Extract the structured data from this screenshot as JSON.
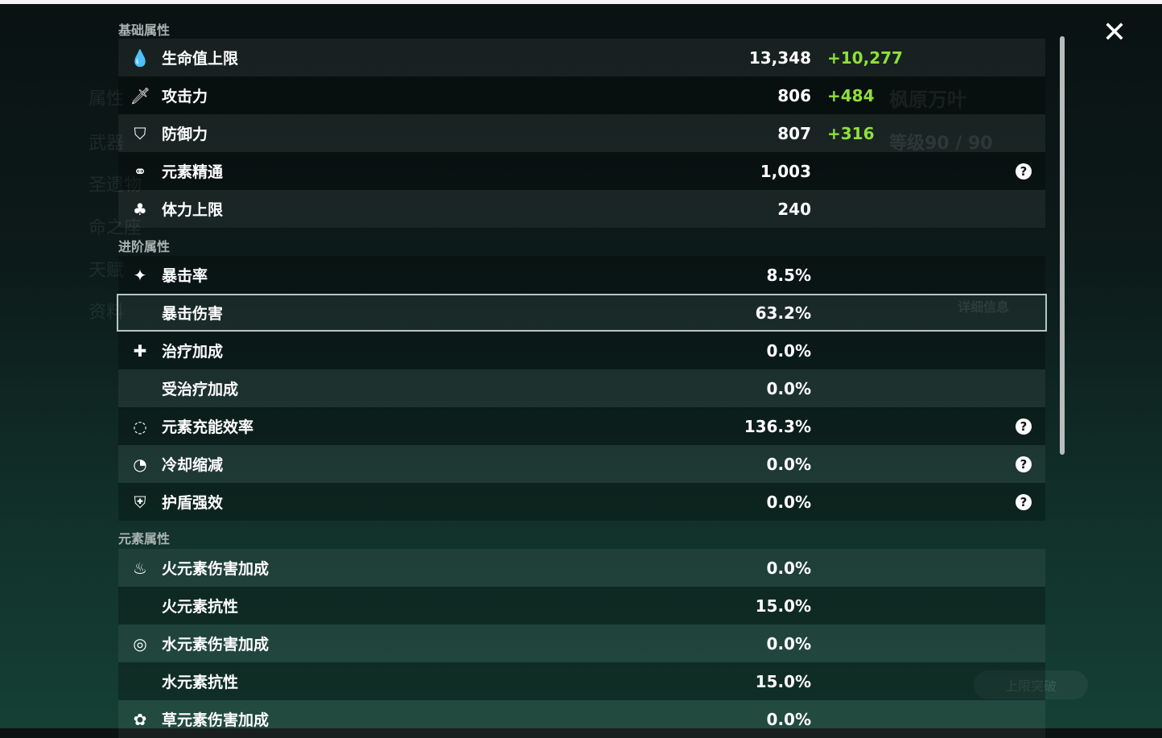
{
  "background": {
    "character_name": "枫原万叶",
    "level": "等级90 / 90",
    "details_button": "详细信息",
    "ascend_button": "上限突破",
    "side_menu": [
      "属性",
      "武器",
      "圣遗物",
      "命之座",
      "天赋",
      "资料"
    ]
  },
  "close_icon": "close-icon",
  "sections": [
    {
      "title": "基础属性",
      "rows": [
        {
          "icon": "hp-drop-icon",
          "glyph": "💧",
          "label": "生命值上限",
          "value": "13,348",
          "bonus": "+10,277",
          "help": false
        },
        {
          "icon": "sword-icon",
          "glyph": "🗡",
          "label": "攻击力",
          "value": "806",
          "bonus": "+484",
          "help": false
        },
        {
          "icon": "shield-icon",
          "glyph": "⛉",
          "label": "防御力",
          "value": "807",
          "bonus": "+316",
          "help": false
        },
        {
          "icon": "elemental-mastery-icon",
          "glyph": "⚭",
          "label": "元素精通",
          "value": "1,003",
          "bonus": "",
          "help": true
        },
        {
          "icon": "stamina-icon",
          "glyph": "♣",
          "label": "体力上限",
          "value": "240",
          "bonus": "",
          "help": false
        }
      ]
    },
    {
      "title": "进阶属性",
      "rows": [
        {
          "icon": "crit-rate-icon",
          "glyph": "✦",
          "label": "暴击率",
          "value": "8.5%",
          "bonus": "",
          "help": false
        },
        {
          "icon": "crit-dmg-icon",
          "glyph": "",
          "label": "暴击伤害",
          "value": "63.2%",
          "bonus": "",
          "help": false,
          "selected": true
        },
        {
          "icon": "healing-icon",
          "glyph": "✚",
          "label": "治疗加成",
          "value": "0.0%",
          "bonus": "",
          "help": false
        },
        {
          "icon": "",
          "glyph": "",
          "label": "受治疗加成",
          "value": "0.0%",
          "bonus": "",
          "help": false
        },
        {
          "icon": "energy-recharge-icon",
          "glyph": "◌",
          "label": "元素充能效率",
          "value": "136.3%",
          "bonus": "",
          "help": true
        },
        {
          "icon": "cooldown-icon",
          "glyph": "◔",
          "label": "冷却缩减",
          "value": "0.0%",
          "bonus": "",
          "help": true
        },
        {
          "icon": "shield-strength-icon",
          "glyph": "⛨",
          "label": "护盾强效",
          "value": "0.0%",
          "bonus": "",
          "help": true
        }
      ]
    },
    {
      "title": "元素属性",
      "rows": [
        {
          "icon": "pyro-icon",
          "glyph": "♨",
          "label": "火元素伤害加成",
          "value": "0.0%",
          "bonus": "",
          "help": false
        },
        {
          "icon": "",
          "glyph": "",
          "label": "火元素抗性",
          "value": "15.0%",
          "bonus": "",
          "help": false
        },
        {
          "icon": "hydro-icon",
          "glyph": "◎",
          "label": "水元素伤害加成",
          "value": "0.0%",
          "bonus": "",
          "help": false
        },
        {
          "icon": "",
          "glyph": "",
          "label": "水元素抗性",
          "value": "15.0%",
          "bonus": "",
          "help": false
        },
        {
          "icon": "dendro-icon",
          "glyph": "✿",
          "label": "草元素伤害加成",
          "value": "0.0%",
          "bonus": "",
          "help": false
        }
      ]
    }
  ],
  "help_glyph": "?",
  "colors": {
    "bonus": "#8fe03a",
    "selected_border": "#b9c4c0"
  }
}
